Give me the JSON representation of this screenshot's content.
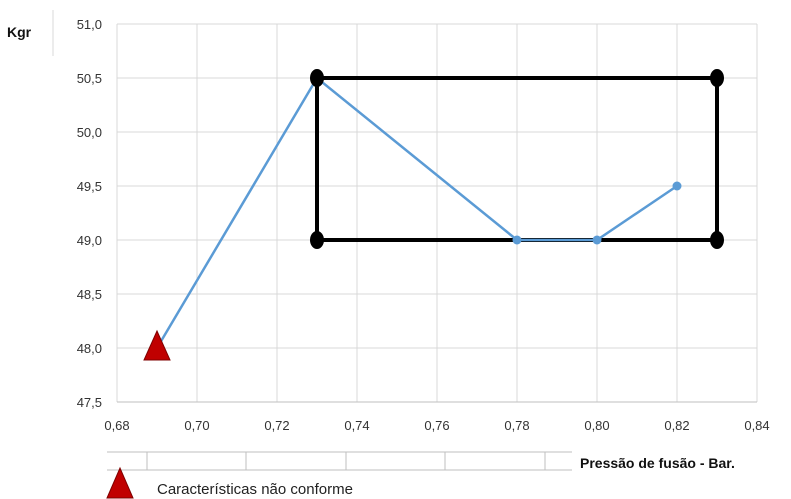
{
  "chart_data": {
    "type": "scatter",
    "ylabel": "Kgr",
    "xlabel": "Pressão de fusão - Bar.",
    "xlim": [
      0.68,
      0.84
    ],
    "ylim": [
      47.5,
      51.0
    ],
    "x_ticks": [
      "0,68",
      "0,70",
      "0,72",
      "0,74",
      "0,76",
      "0,78",
      "0,80",
      "0,82",
      "0,84"
    ],
    "y_ticks": [
      "47,5",
      "48,0",
      "48,5",
      "49,0",
      "49,5",
      "50,0",
      "50,5",
      "51,0"
    ],
    "grid": true,
    "series": [
      {
        "values": [
          {
            "x": 0.69,
            "y": 48.0
          },
          {
            "x": 0.73,
            "y": 50.5
          },
          {
            "x": 0.78,
            "y": 49.0
          },
          {
            "x": 0.8,
            "y": 49.0
          },
          {
            "x": 0.82,
            "y": 49.5
          }
        ],
        "color": "#5b9bd5",
        "marker": "circle"
      }
    ],
    "highlight_rectangle": {
      "x0": 0.73,
      "x1": 0.83,
      "y0": 49.0,
      "y1": 50.5,
      "corners": [
        {
          "x": 0.73,
          "y": 50.5
        },
        {
          "x": 0.83,
          "y": 50.5
        },
        {
          "x": 0.73,
          "y": 49.0
        },
        {
          "x": 0.83,
          "y": 49.0
        }
      ],
      "color": "#000000"
    },
    "nonconforming_point": {
      "x": 0.69,
      "y": 48.0,
      "marker": "triangle",
      "color": "#c00000"
    },
    "legend": {
      "position": "bottom-left",
      "entries": [
        {
          "label": "Características não conforme",
          "marker": "triangle",
          "color": "#c00000"
        }
      ]
    }
  }
}
